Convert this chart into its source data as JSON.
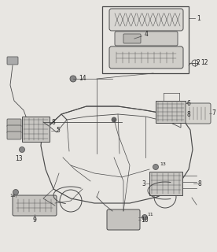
{
  "bg_color": "#e8e6e2",
  "line_color": "#4a4a4a",
  "label_color": "#222222",
  "box_bg": "#e8e6e2",
  "fig_w": 2.76,
  "fig_h": 3.2,
  "dpi": 100
}
